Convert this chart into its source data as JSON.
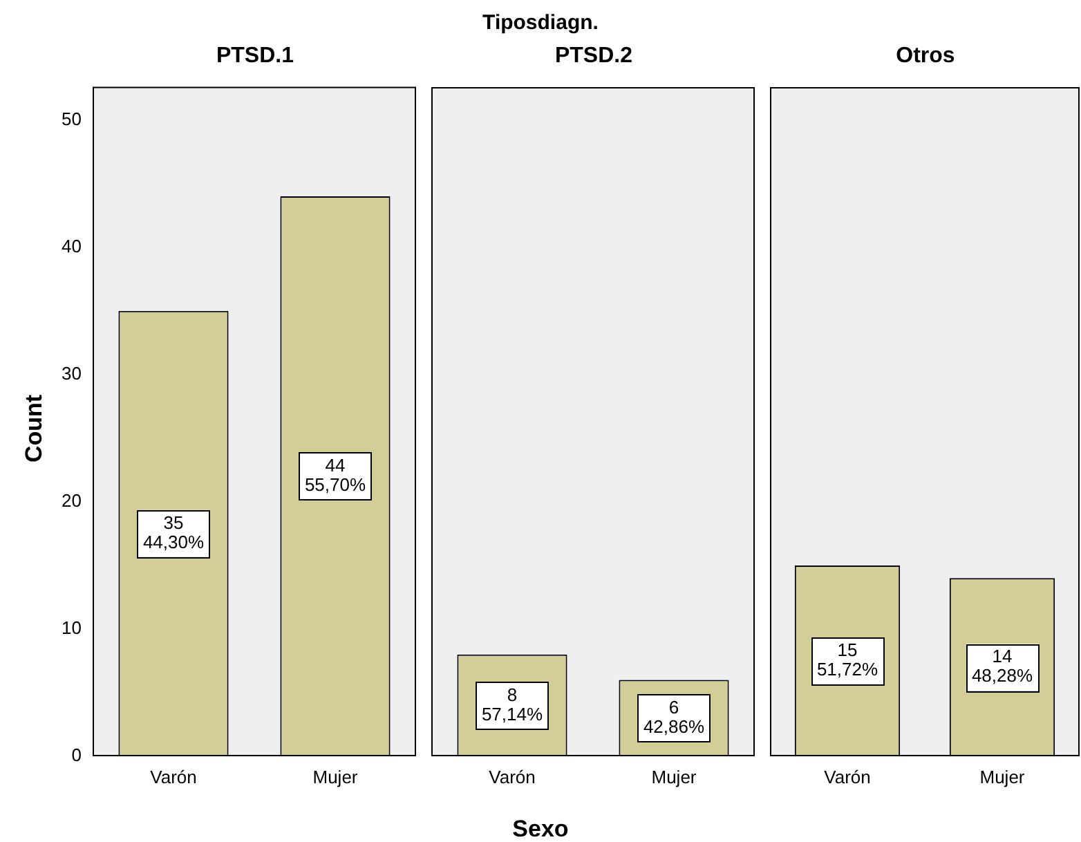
{
  "chart_data": [
    {
      "type": "bar",
      "title": "PTSD.1",
      "ylabel": "Count",
      "categories": [
        "Varón",
        "Mujer"
      ],
      "values": [
        35,
        44
      ],
      "value_labels": [
        "35\n44,30%",
        "44\n55,70%"
      ],
      "color": "#d3ce98",
      "ylim": [
        0,
        52.6
      ],
      "yticks": [
        0,
        10,
        20,
        30,
        40,
        50
      ],
      "grid": false,
      "legend": false
    },
    {
      "type": "bar",
      "subtitle": "Tiposdiagn.",
      "title": "PTSD.2",
      "xlabel": "Sexo",
      "categories": [
        "Varón",
        "Mujer"
      ],
      "values": [
        8,
        6
      ],
      "value_labels": [
        "8\n57,14%",
        "6\n42,86%"
      ],
      "color": "#d3ce98",
      "ylim": [
        0,
        52.6
      ],
      "yticks": [
        0,
        10,
        20,
        30,
        40,
        50
      ],
      "tick_labels": "x",
      "grid": false,
      "legend": false
    },
    {
      "type": "bar",
      "title": "Otros",
      "categories": [
        "Varón",
        "Mujer"
      ],
      "values": [
        15,
        14
      ],
      "value_labels": [
        "15\n51,72%",
        "14\n48,28%"
      ],
      "color": "#d3ce98",
      "ylim": [
        0,
        52.6
      ],
      "yticks": [
        0,
        10,
        20,
        30,
        40,
        50
      ],
      "tick_labels": "x",
      "grid": false,
      "legend": false
    }
  ]
}
